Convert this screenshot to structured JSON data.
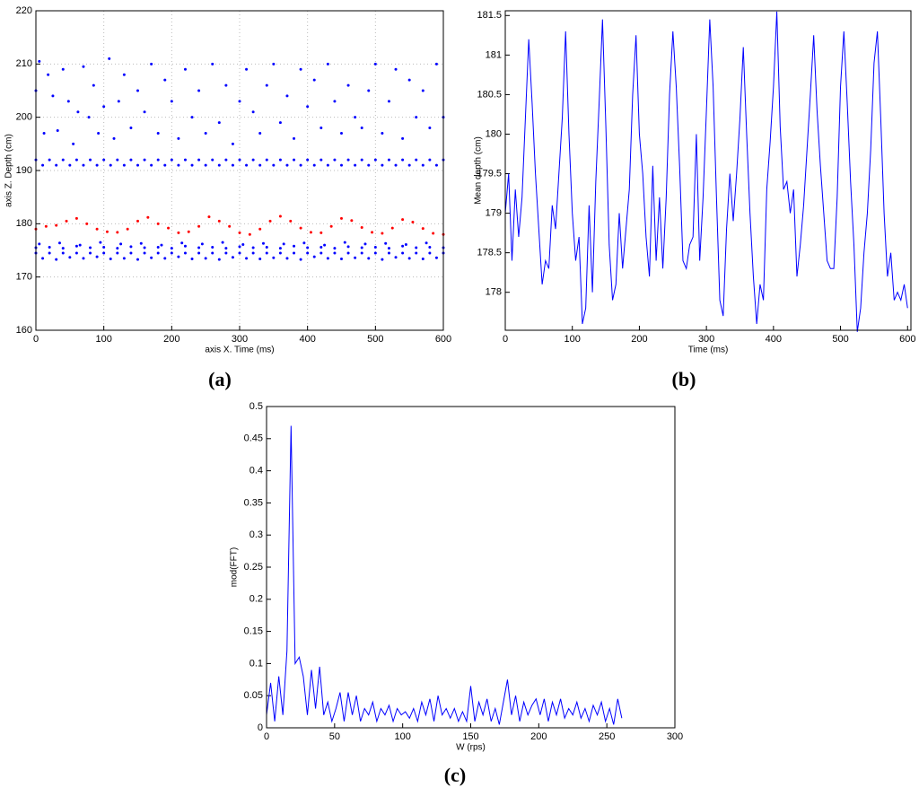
{
  "chart_data": [
    {
      "type": "scatter",
      "panel_label": "(a)",
      "xlabel": "axis X. Time (ms)",
      "ylabel": "axis Z. Depth (cm)",
      "xlim": [
        0,
        600
      ],
      "ylim": [
        160,
        220
      ],
      "xticks": [
        0,
        100,
        200,
        300,
        400,
        500,
        600
      ],
      "yticks": [
        160,
        170,
        180,
        190,
        200,
        210,
        220
      ],
      "grid": true,
      "series": [
        {
          "color": "#0000ff",
          "x": [
            0,
            5,
            12,
            18,
            25,
            32,
            40,
            48,
            55,
            62,
            70,
            78,
            85,
            92,
            100,
            108,
            115,
            122,
            130,
            140,
            150,
            160,
            170,
            180,
            190,
            200,
            210,
            220,
            230,
            240,
            250,
            260,
            270,
            280,
            290,
            300,
            310,
            320,
            330,
            340,
            350,
            360,
            370,
            380,
            390,
            400,
            410,
            420,
            430,
            440,
            450,
            460,
            470,
            480,
            490,
            500,
            510,
            520,
            530,
            540,
            550,
            560,
            570,
            580,
            590,
            600
          ],
          "values": [
            205,
            210.5,
            197,
            208,
            204,
            197.5,
            209,
            203,
            195,
            201,
            209.5,
            200,
            206,
            197,
            202,
            211,
            196,
            203,
            208,
            198,
            205,
            201,
            210,
            197,
            207,
            203,
            196,
            209,
            200,
            205,
            197,
            210,
            199,
            206,
            195,
            203,
            209,
            201,
            197,
            206,
            210,
            199,
            204,
            196,
            209,
            202,
            207,
            198,
            210,
            203,
            197,
            206,
            200,
            198,
            205,
            210,
            197,
            203,
            209,
            196,
            207,
            200,
            205,
            198,
            210,
            200
          ]
        },
        {
          "color": "#0000ff",
          "x": [
            0,
            20,
            40,
            60,
            80,
            100,
            120,
            140,
            160,
            180,
            200,
            220,
            240,
            260,
            280,
            300,
            320,
            340,
            360,
            380,
            400,
            420,
            440,
            460,
            480,
            500,
            520,
            540,
            560,
            580,
            600
          ],
          "values": [
            192,
            192,
            192,
            192,
            192,
            192,
            192,
            192,
            192,
            192,
            192,
            192,
            192,
            192,
            192,
            192,
            192,
            192,
            192,
            192,
            192,
            192,
            192,
            192,
            192,
            192,
            192,
            192,
            192,
            192,
            192
          ]
        },
        {
          "color": "#0000ff",
          "x": [
            10,
            30,
            50,
            70,
            90,
            110,
            130,
            150,
            170,
            190,
            210,
            230,
            250,
            270,
            290,
            310,
            330,
            350,
            370,
            390,
            410,
            430,
            450,
            470,
            490,
            510,
            530,
            550,
            570,
            590
          ],
          "values": [
            191,
            191,
            191,
            191,
            191,
            191,
            191,
            191,
            191,
            191,
            191,
            191,
            191,
            191,
            191,
            191,
            191,
            191,
            191,
            191,
            191,
            191,
            191,
            191,
            191,
            191,
            191,
            191,
            191,
            191
          ]
        },
        {
          "color": "#0000ff",
          "x": [
            0,
            20,
            40,
            60,
            80,
            100,
            120,
            140,
            160,
            180,
            200,
            220,
            240,
            260,
            280,
            300,
            320,
            340,
            360,
            380,
            400,
            420,
            440,
            460,
            480,
            500,
            520,
            540,
            560,
            580,
            600
          ],
          "values": [
            174.5,
            174.5,
            174.5,
            174.5,
            174.5,
            174.5,
            174.5,
            174.5,
            174.5,
            174.5,
            174.5,
            174.5,
            174.5,
            174.5,
            174.5,
            174.5,
            174.5,
            174.5,
            174.5,
            174.5,
            174.5,
            174.5,
            174.5,
            174.5,
            174.5,
            174.5,
            174.5,
            174.5,
            174.5,
            174.5,
            174.5
          ]
        },
        {
          "color": "#0000ff",
          "x": [
            10,
            30,
            50,
            70,
            90,
            110,
            130,
            150,
            170,
            190,
            210,
            230,
            250,
            270,
            290,
            310,
            330,
            350,
            370,
            390,
            410,
            430,
            450,
            470,
            490,
            510,
            530,
            550,
            570,
            590
          ],
          "values": [
            173.5,
            173.3,
            173.7,
            173.5,
            173.8,
            173.4,
            173.5,
            173.3,
            173.6,
            173.5,
            173.8,
            173.4,
            173.5,
            173.3,
            173.7,
            173.5,
            173.4,
            173.6,
            173.5,
            173.3,
            173.8,
            173.5,
            173.4,
            173.6,
            173.5,
            173.3,
            173.7,
            173.5,
            173.4,
            173.6
          ]
        },
        {
          "color": "#0000ff",
          "x": [
            0,
            20,
            40,
            60,
            80,
            100,
            120,
            140,
            160,
            180,
            200,
            220,
            240,
            260,
            280,
            300,
            320,
            340,
            360,
            380,
            400,
            420,
            440,
            460,
            480,
            500,
            520,
            540,
            560,
            580,
            600
          ],
          "values": [
            175.5,
            175.6,
            175.4,
            175.8,
            175.5,
            175.6,
            175.4,
            175.7,
            175.5,
            175.6,
            175.4,
            175.8,
            175.5,
            175.6,
            175.4,
            175.7,
            175.5,
            175.6,
            175.4,
            175.8,
            175.5,
            175.6,
            175.4,
            175.7,
            175.5,
            175.6,
            175.4,
            175.8,
            175.5,
            175.6,
            175.5
          ]
        },
        {
          "color": "#0000ff",
          "x": [
            5,
            35,
            65,
            95,
            125,
            155,
            185,
            215,
            245,
            275,
            305,
            335,
            365,
            395,
            425,
            455,
            485,
            515,
            545,
            575
          ],
          "values": [
            176.2,
            176.4,
            176,
            176.5,
            176.2,
            176.3,
            176,
            176.4,
            176.2,
            176.5,
            176.1,
            176.3,
            176.2,
            176.4,
            176,
            176.5,
            176.2,
            176.3,
            176.1,
            176.4
          ]
        },
        {
          "color": "#ff0000",
          "x": [
            0,
            15,
            30,
            45,
            60,
            75,
            90,
            105,
            120,
            135,
            150,
            165,
            180,
            195,
            210,
            225,
            240,
            255,
            270,
            285,
            300,
            315,
            330,
            345,
            360,
            375,
            390,
            405,
            420,
            435,
            450,
            465,
            480,
            495,
            510,
            525,
            540,
            555,
            570,
            585,
            600
          ],
          "values": [
            179,
            179.5,
            179.7,
            180.5,
            181,
            180,
            179,
            178.5,
            178.4,
            179,
            180.5,
            181.2,
            180,
            179.2,
            178.3,
            178.5,
            179.5,
            181.3,
            180.5,
            179.5,
            178.3,
            178,
            179,
            180.5,
            181.4,
            180.5,
            179.2,
            178.4,
            178.3,
            179.5,
            181,
            180.6,
            179.3,
            178.4,
            178.2,
            179.2,
            180.8,
            180.3,
            179.1,
            178.2,
            178
          ]
        }
      ]
    },
    {
      "type": "line",
      "panel_label": "(b)",
      "xlabel": "Time (ms)",
      "ylabel": "Mean depth (cm)",
      "color": "#0000ff",
      "xlim": [
        0,
        605
      ],
      "ylim": [
        177.52,
        181.56
      ],
      "xticks": [
        0,
        100,
        200,
        300,
        400,
        500,
        600
      ],
      "yticks": [
        178,
        178.5,
        179,
        179.5,
        180,
        180.5,
        181,
        181.5
      ],
      "grid": false,
      "x": [
        0,
        5,
        10,
        15,
        20,
        25,
        30,
        35,
        40,
        45,
        50,
        55,
        60,
        65,
        70,
        75,
        80,
        85,
        90,
        95,
        100,
        105,
        110,
        115,
        120,
        125,
        130,
        135,
        140,
        145,
        150,
        155,
        160,
        165,
        170,
        175,
        180,
        185,
        190,
        195,
        200,
        205,
        210,
        215,
        220,
        225,
        230,
        235,
        240,
        245,
        250,
        255,
        260,
        265,
        270,
        275,
        280,
        285,
        290,
        295,
        300,
        305,
        310,
        315,
        320,
        325,
        330,
        335,
        340,
        345,
        350,
        355,
        360,
        365,
        370,
        375,
        380,
        385,
        390,
        395,
        400,
        405,
        410,
        415,
        420,
        425,
        430,
        435,
        440,
        445,
        450,
        455,
        460,
        465,
        470,
        475,
        480,
        485,
        490,
        495,
        500,
        505,
        510,
        515,
        520,
        525,
        530,
        535,
        540,
        545,
        550,
        555,
        560,
        565,
        570,
        575,
        580,
        585,
        590,
        595,
        600
      ],
      "values": [
        179.0,
        179.5,
        178.4,
        179.3,
        178.7,
        179.2,
        180.2,
        181.2,
        180.4,
        179.5,
        178.8,
        178.1,
        178.4,
        178.3,
        179.1,
        178.8,
        179.5,
        180.2,
        181.3,
        180.0,
        179.0,
        178.4,
        178.7,
        177.6,
        177.8,
        179.1,
        178.0,
        179.4,
        180.4,
        181.45,
        180.1,
        178.6,
        177.9,
        178.1,
        179.0,
        178.3,
        178.8,
        179.3,
        180.5,
        181.25,
        180.0,
        179.5,
        178.7,
        178.2,
        179.6,
        178.4,
        179.2,
        178.3,
        179.2,
        180.5,
        181.3,
        180.6,
        179.6,
        178.4,
        178.3,
        178.6,
        178.7,
        180.0,
        178.4,
        179.2,
        180.3,
        181.45,
        180.6,
        179.2,
        177.9,
        177.7,
        178.8,
        179.5,
        178.9,
        179.5,
        180.2,
        181.1,
        180.0,
        179.0,
        178.2,
        177.6,
        178.1,
        177.9,
        179.3,
        179.9,
        180.6,
        181.55,
        180.1,
        179.3,
        179.4,
        179.0,
        179.3,
        178.2,
        178.6,
        179.1,
        179.8,
        180.5,
        181.25,
        180.3,
        179.6,
        179.0,
        178.4,
        178.3,
        178.3,
        179.2,
        180.6,
        181.3,
        180.4,
        179.4,
        178.6,
        177.5,
        177.8,
        178.5,
        179.0,
        179.8,
        180.9,
        181.3,
        180.2,
        179.0,
        178.2,
        178.5,
        177.9,
        178.0,
        177.9,
        178.1,
        177.8
      ]
    },
    {
      "type": "line",
      "panel_label": "(c)",
      "xlabel": "W (rps)",
      "ylabel": "mod(FFT)",
      "color": "#0000ff",
      "xlim": [
        0,
        300
      ],
      "ylim": [
        0,
        0.5
      ],
      "xticks": [
        0,
        50,
        100,
        150,
        200,
        250,
        300
      ],
      "yticks": [
        0,
        0.05,
        0.1,
        0.15,
        0.2,
        0.25,
        0.3,
        0.35,
        0.4,
        0.45,
        0.5
      ],
      "grid": false,
      "x": [
        0,
        3,
        6,
        9,
        12,
        15,
        18,
        21,
        24,
        27,
        30,
        33,
        36,
        39,
        42,
        45,
        48,
        51,
        54,
        57,
        60,
        63,
        66,
        69,
        72,
        75,
        78,
        81,
        84,
        87,
        90,
        93,
        96,
        99,
        102,
        105,
        108,
        111,
        114,
        117,
        120,
        123,
        126,
        129,
        132,
        135,
        138,
        141,
        144,
        147,
        150,
        153,
        156,
        159,
        162,
        165,
        168,
        171,
        174,
        177,
        180,
        183,
        186,
        189,
        192,
        195,
        198,
        201,
        204,
        207,
        210,
        213,
        216,
        219,
        222,
        225,
        228,
        231,
        234,
        237,
        240,
        243,
        246,
        249,
        252,
        255,
        258,
        261
      ],
      "values": [
        0.02,
        0.07,
        0.01,
        0.08,
        0.02,
        0.12,
        0.47,
        0.1,
        0.11,
        0.08,
        0.02,
        0.09,
        0.03,
        0.095,
        0.02,
        0.04,
        0.01,
        0.03,
        0.055,
        0.01,
        0.055,
        0.02,
        0.05,
        0.01,
        0.03,
        0.02,
        0.04,
        0.01,
        0.03,
        0.02,
        0.035,
        0.01,
        0.03,
        0.02,
        0.025,
        0.015,
        0.03,
        0.01,
        0.04,
        0.02,
        0.045,
        0.01,
        0.05,
        0.02,
        0.03,
        0.015,
        0.03,
        0.01,
        0.025,
        0.01,
        0.065,
        0.01,
        0.04,
        0.02,
        0.045,
        0.01,
        0.03,
        0.005,
        0.04,
        0.075,
        0.02,
        0.05,
        0.01,
        0.04,
        0.02,
        0.035,
        0.045,
        0.02,
        0.045,
        0.01,
        0.04,
        0.02,
        0.045,
        0.015,
        0.03,
        0.02,
        0.04,
        0.015,
        0.03,
        0.01,
        0.035,
        0.02,
        0.04,
        0.01,
        0.03,
        0.005,
        0.045,
        0.015
      ]
    }
  ]
}
